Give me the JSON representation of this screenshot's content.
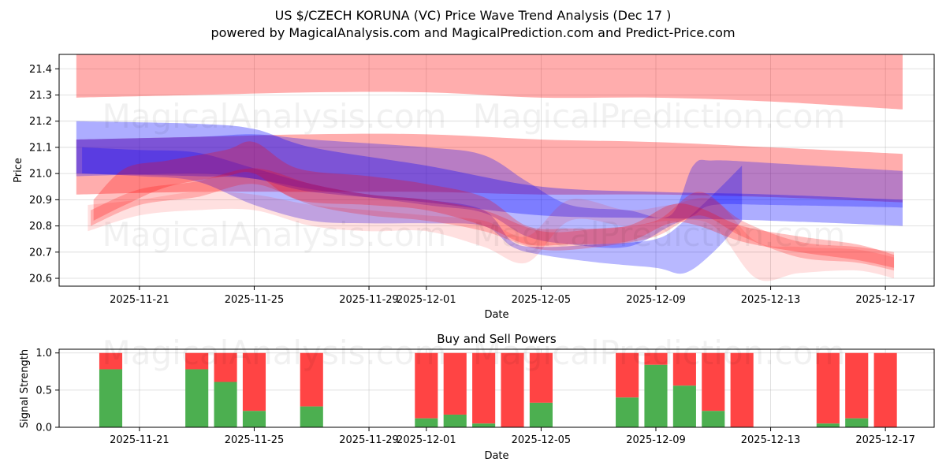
{
  "title_line1": "US $/CZECH KORUNA (VC) Price Wave Trend Analysis (Dec 17 )",
  "title_line2": "powered by MagicalAnalysis.com and MagicalPrediction.com and Predict-Price.com",
  "watermarks": [
    "MagicalAnalysis.com",
    "MagicalPrediction.com"
  ],
  "colors": {
    "red": "#ff0000",
    "blue": "#0000ff",
    "buy": "#4caf50",
    "sell": "#ff4444"
  },
  "chart_data": [
    {
      "type": "area",
      "title": "",
      "xlabel": "Date",
      "ylabel": "Price",
      "xlim": [
        -1.8,
        28.7
      ],
      "ylim": [
        20.57,
        21.455
      ],
      "x_ticks": [
        {
          "day": 1,
          "label": "2025-11-21"
        },
        {
          "day": 5,
          "label": "2025-11-25"
        },
        {
          "day": 9,
          "label": "2025-11-29"
        },
        {
          "day": 11,
          "label": "2025-12-01"
        },
        {
          "day": 15,
          "label": "2025-12-05"
        },
        {
          "day": 19,
          "label": "2025-12-09"
        },
        {
          "day": 23,
          "label": "2025-12-13"
        },
        {
          "day": 27,
          "label": "2025-12-17"
        }
      ],
      "y_ticks": [
        20.6,
        20.7,
        20.8,
        20.9,
        21.0,
        21.1,
        21.2,
        21.3,
        21.4
      ],
      "series": [
        {
          "name": "red-top-band",
          "color": "red",
          "opacity": 0.32,
          "x": [
            -1.2,
            3,
            7,
            11,
            15,
            19,
            23,
            27.6
          ],
          "upper": [
            21.46,
            21.46,
            21.46,
            21.46,
            21.46,
            21.46,
            21.46,
            21.46
          ],
          "lower": [
            21.29,
            21.3,
            21.31,
            21.31,
            21.29,
            21.29,
            21.275,
            21.245
          ]
        },
        {
          "name": "red-mid-band",
          "color": "red",
          "opacity": 0.32,
          "x": [
            -1.2,
            3,
            7,
            11,
            15,
            19,
            23,
            27.6
          ],
          "upper": [
            21.13,
            21.14,
            21.15,
            21.15,
            21.13,
            21.12,
            21.1,
            21.075
          ],
          "lower": [
            20.92,
            20.93,
            20.93,
            20.93,
            20.92,
            20.92,
            20.91,
            20.89
          ]
        },
        {
          "name": "blue-upper-band",
          "color": "blue",
          "opacity": 0.32,
          "x": [
            -1.2,
            3,
            5,
            7,
            11,
            15,
            19,
            23,
            27.6
          ],
          "upper": [
            21.2,
            21.19,
            21.17,
            21.1,
            21.03,
            20.95,
            20.93,
            20.92,
            20.9
          ],
          "lower": [
            21.0,
            20.99,
            20.98,
            20.93,
            20.89,
            20.84,
            20.83,
            20.82,
            20.8
          ]
        },
        {
          "name": "purple-band",
          "color": "blue",
          "opacity": 0.28,
          "x": [
            -1.2,
            3,
            5,
            7,
            11,
            13,
            14.5,
            16,
            18,
            19.5,
            20.3,
            21,
            23,
            27.6
          ],
          "upper": [
            21.13,
            21.14,
            21.15,
            21.13,
            21.1,
            21.07,
            20.97,
            20.88,
            20.86,
            20.84,
            21.03,
            21.05,
            21.04,
            21.01
          ],
          "lower": [
            20.99,
            21.0,
            20.98,
            20.94,
            20.88,
            20.85,
            20.76,
            20.73,
            20.72,
            20.8,
            20.84,
            20.88,
            20.88,
            20.87
          ]
        },
        {
          "name": "blue-lower-band",
          "color": "blue",
          "opacity": 0.28,
          "x": [
            -1,
            1,
            3,
            5,
            7,
            9,
            11,
            13,
            14,
            15,
            17,
            19,
            20,
            21,
            22
          ],
          "upper": [
            21.1,
            21.09,
            21.08,
            21.02,
            20.96,
            20.92,
            20.9,
            20.86,
            20.74,
            20.72,
            20.73,
            20.75,
            20.82,
            20.92,
            21.03
          ],
          "lower": [
            21.0,
            20.99,
            20.97,
            20.88,
            20.82,
            20.81,
            20.81,
            20.8,
            20.72,
            20.69,
            20.66,
            20.64,
            20.62,
            20.7,
            20.82
          ]
        },
        {
          "name": "red-wave-1",
          "color": "red",
          "opacity": 0.25,
          "x": [
            -0.6,
            0.5,
            2,
            4,
            5,
            6.5,
            9,
            11,
            13,
            14.5,
            16,
            18,
            19.5,
            20.5,
            22,
            24,
            26,
            27.3
          ],
          "upper": [
            20.9,
            21.02,
            21.05,
            21.09,
            21.12,
            21.02,
            20.99,
            20.96,
            20.91,
            20.8,
            20.79,
            20.8,
            20.88,
            20.87,
            20.8,
            20.76,
            20.73,
            20.69
          ],
          "lower": [
            20.82,
            20.88,
            20.95,
            20.99,
            21.0,
            20.9,
            20.88,
            20.86,
            20.8,
            20.73,
            20.73,
            20.74,
            20.81,
            20.8,
            20.74,
            20.7,
            20.67,
            20.64
          ]
        },
        {
          "name": "red-wave-2",
          "color": "red",
          "opacity": 0.22,
          "x": [
            -0.7,
            1,
            3,
            5,
            7,
            9,
            11,
            13,
            15,
            17,
            19,
            20.5,
            22,
            24,
            26,
            27.3
          ],
          "upper": [
            20.86,
            20.94,
            20.97,
            21.02,
            20.96,
            20.92,
            20.9,
            20.86,
            20.78,
            20.79,
            20.82,
            20.93,
            20.82,
            20.74,
            20.72,
            20.7
          ],
          "lower": [
            20.8,
            20.88,
            20.91,
            20.96,
            20.88,
            20.84,
            20.82,
            20.78,
            20.71,
            20.72,
            20.76,
            20.84,
            20.76,
            20.68,
            20.66,
            20.63
          ]
        },
        {
          "name": "pink-wave",
          "color": "red",
          "opacity": 0.12,
          "x": [
            -0.8,
            1,
            3,
            5,
            7,
            9,
            11,
            13,
            14.5,
            16,
            18,
            19.5,
            21,
            22.5,
            24,
            26,
            27.3
          ],
          "upper": [
            20.88,
            20.9,
            20.93,
            20.92,
            20.88,
            20.86,
            20.84,
            20.82,
            20.76,
            20.9,
            20.86,
            20.88,
            20.9,
            20.74,
            20.72,
            20.71,
            20.68
          ],
          "lower": [
            20.78,
            20.84,
            20.86,
            20.86,
            20.8,
            20.78,
            20.78,
            20.72,
            20.66,
            20.82,
            20.8,
            20.82,
            20.8,
            20.6,
            20.62,
            20.63,
            20.6
          ]
        }
      ]
    },
    {
      "type": "bar",
      "title": "Buy and Sell Powers",
      "xlabel": "Date",
      "ylabel": "Signal Strength",
      "xlim": [
        -1.8,
        28.7
      ],
      "ylim": [
        0,
        1.05
      ],
      "y_ticks": [
        0.0,
        0.5,
        1.0
      ],
      "y_tick_labels": [
        "0.0",
        "0.5",
        "1.0"
      ],
      "x_ticks": [
        {
          "day": 1,
          "label": "2025-11-21"
        },
        {
          "day": 5,
          "label": "2025-11-25"
        },
        {
          "day": 9,
          "label": "2025-11-29"
        },
        {
          "day": 11,
          "label": "2025-12-01"
        },
        {
          "day": 15,
          "label": "2025-12-05"
        },
        {
          "day": 19,
          "label": "2025-12-09"
        },
        {
          "day": 23,
          "label": "2025-12-13"
        },
        {
          "day": 27,
          "label": "2025-12-17"
        }
      ],
      "bars": [
        {
          "day": 0,
          "buy": 0.78
        },
        {
          "day": 3,
          "buy": 0.78
        },
        {
          "day": 4,
          "buy": 0.61
        },
        {
          "day": 5,
          "buy": 0.22
        },
        {
          "day": 7,
          "buy": 0.28
        },
        {
          "day": 11,
          "buy": 0.12
        },
        {
          "day": 12,
          "buy": 0.17
        },
        {
          "day": 13,
          "buy": 0.05
        },
        {
          "day": 14,
          "buy": 0.0
        },
        {
          "day": 15,
          "buy": 0.33
        },
        {
          "day": 18,
          "buy": 0.4
        },
        {
          "day": 19,
          "buy": 0.84
        },
        {
          "day": 20,
          "buy": 0.56
        },
        {
          "day": 21,
          "buy": 0.22
        },
        {
          "day": 22,
          "buy": 0.0
        },
        {
          "day": 25,
          "buy": 0.05
        },
        {
          "day": 26,
          "buy": 0.12
        },
        {
          "day": 27,
          "buy": 0.0
        }
      ]
    }
  ]
}
